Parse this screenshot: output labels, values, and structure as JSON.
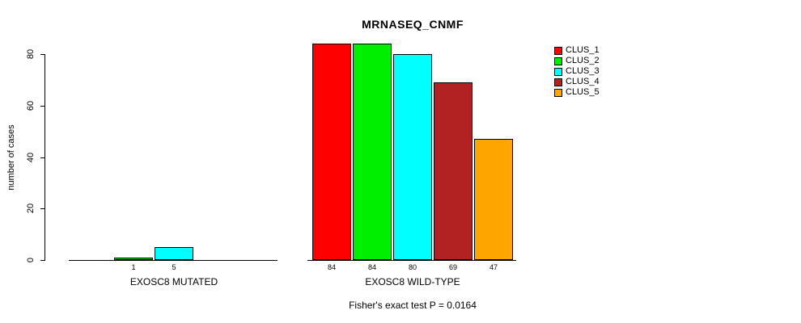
{
  "title": "MRNASEQ_CNMF",
  "ylabel": "number of cases",
  "footer": "Fisher's exact test P = 0.0164",
  "chart_data": {
    "type": "bar",
    "title": "MRNASEQ_CNMF",
    "ylabel": "number of cases",
    "xlabel": "",
    "ylim": [
      0,
      80
    ],
    "yticks": [
      0,
      20,
      40,
      60,
      80
    ],
    "grid": false,
    "legend_position": "top-right",
    "legend": [
      {
        "label": "CLUS_1",
        "color": "#FF0000"
      },
      {
        "label": "CLUS_2",
        "color": "#00EE00"
      },
      {
        "label": "CLUS_3",
        "color": "#00FFFF"
      },
      {
        "label": "CLUS_4",
        "color": "#B22222"
      },
      {
        "label": "CLUS_5",
        "color": "#FFA500"
      }
    ],
    "groups": [
      {
        "label": "EXOSC8 MUTATED",
        "values": [
          0,
          1,
          5,
          0,
          0
        ],
        "bar_labels": [
          "",
          "1",
          "5",
          "",
          ""
        ]
      },
      {
        "label": "EXOSC8 WILD-TYPE",
        "values": [
          84,
          84,
          80,
          69,
          47
        ],
        "bar_labels": [
          "84",
          "84",
          "80",
          "69",
          "47"
        ]
      }
    ],
    "annotation": "Fisher's exact test P = 0.0164"
  }
}
